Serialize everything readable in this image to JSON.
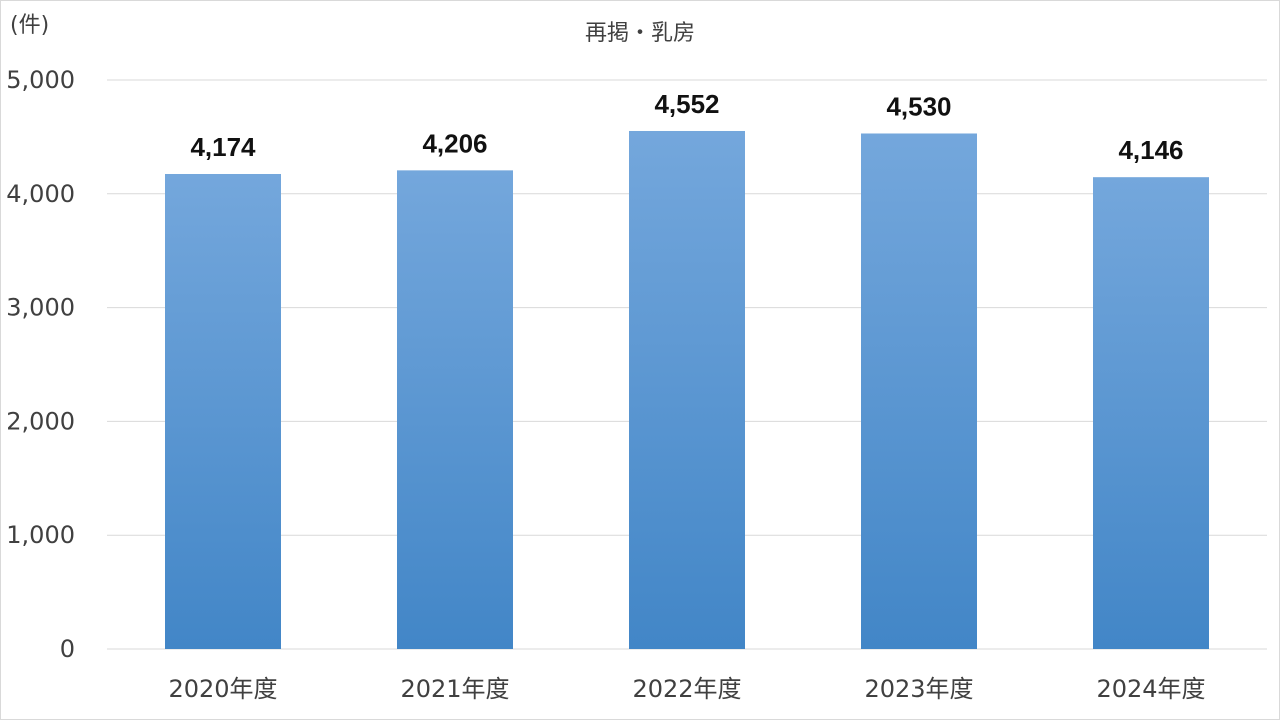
{
  "chart_data": {
    "type": "bar",
    "title": "再掲・乳房",
    "unit_label": "(件)",
    "categories": [
      "2020年度",
      "2021年度",
      "2022年度",
      "2023年度",
      "2024年度"
    ],
    "values": [
      4174,
      4206,
      4552,
      4530,
      4146
    ],
    "data_labels": [
      "4,174",
      "4,206",
      "4,552",
      "4,530",
      "4,146"
    ],
    "ylim": [
      0,
      5000
    ],
    "yticks": [
      0,
      1000,
      2000,
      3000,
      4000,
      5000
    ],
    "ytick_labels": [
      "0",
      "1,000",
      "2,000",
      "3,000",
      "4,000",
      "5,000"
    ],
    "grid": true,
    "legend": "none",
    "colors": {
      "bar_top": "#74a7dc",
      "bar_bottom": "#4286c7",
      "grid": "#d9d9d9"
    }
  }
}
